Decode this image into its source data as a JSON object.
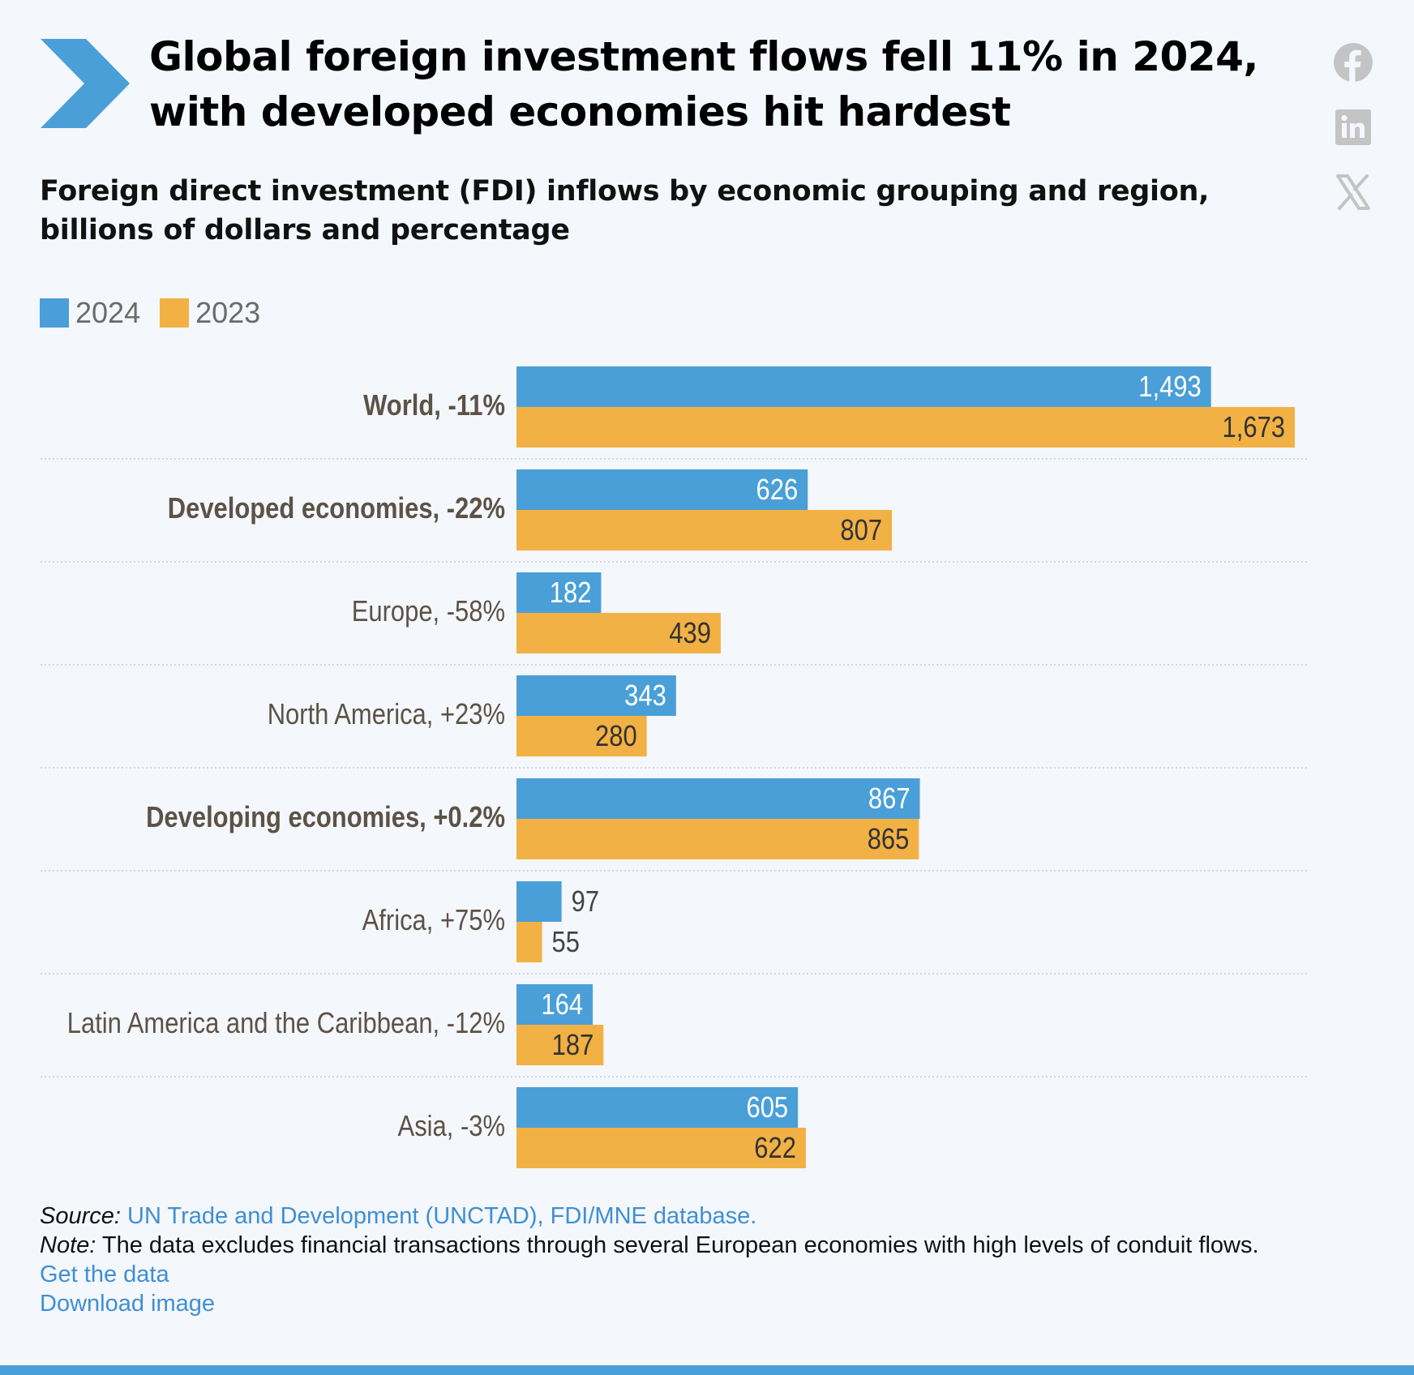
{
  "headline": "Global foreign investment flows fell 11% in 2024, with developed economies hit hardest",
  "subtitle": "Foreign direct investment (FDI) inflows by economic grouping and region, billions of dollars and percentage",
  "share": {
    "icons": [
      "facebook-icon",
      "linkedin-icon",
      "x-icon"
    ]
  },
  "colors": {
    "series_2024": "#4a9fd8",
    "series_2023": "#f2b144",
    "label_text": "#5c5246",
    "value_inside_2024": "#ffffff",
    "value_inside_2023": "#333333",
    "link": "#3f8fd4",
    "accent": "#4a9fd8"
  },
  "chart_data": {
    "type": "bar",
    "orientation": "horizontal",
    "legend": [
      {
        "name": "2024",
        "color": "#4a9fd8"
      },
      {
        "name": "2023",
        "color": "#f2b144"
      }
    ],
    "legend_placement": "top-left",
    "grid": false,
    "categories": [
      {
        "label": "World, -11%",
        "bold": true
      },
      {
        "label": "Developed economies, -22%",
        "bold": true
      },
      {
        "label": "Europe, -58%",
        "bold": false
      },
      {
        "label": "North America, +23%",
        "bold": false
      },
      {
        "label": "Developing economies, +0.2%",
        "bold": true
      },
      {
        "label": "Africa, +75%",
        "bold": false
      },
      {
        "label": "Latin America and the Caribbean, -12%",
        "bold": false
      },
      {
        "label": "Asia, -3%",
        "bold": false
      }
    ],
    "series": [
      {
        "name": "2024",
        "values": [
          1493,
          626,
          182,
          343,
          867,
          97,
          164,
          605
        ],
        "value_labels": [
          "1,493",
          "626",
          "182",
          "343",
          "867",
          "97",
          "164",
          "605"
        ]
      },
      {
        "name": "2023",
        "values": [
          1673,
          807,
          439,
          280,
          865,
          55,
          187,
          622
        ],
        "value_labels": [
          "1,673",
          "807",
          "439",
          "280",
          "865",
          "55",
          "187",
          "622"
        ]
      }
    ],
    "xlim": [
      0,
      1673
    ]
  },
  "footer": {
    "source_prefix": "Source:",
    "source_link": "UN Trade and Development (UNCTAD), FDI/MNE database.",
    "note_prefix": "Note:",
    "note_text": "The data excludes financial transactions through several European economies with high levels of conduit flows.",
    "get_data": "Get the data",
    "download_image": "Download image"
  }
}
